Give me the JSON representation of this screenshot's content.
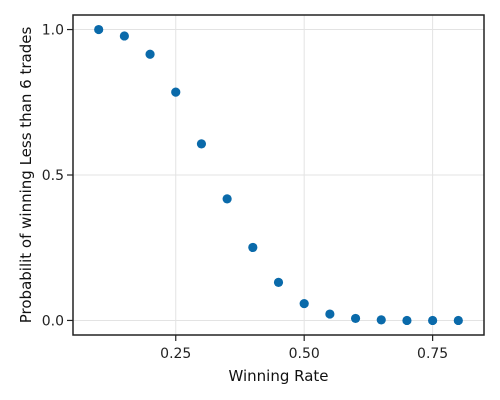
{
  "chart_data": {
    "type": "scatter",
    "title": "",
    "xlabel": "Winning Rate",
    "ylabel": "Probabilit of winning Less than 6 trades",
    "xlim": [
      0.05,
      0.85
    ],
    "ylim": [
      -0.05,
      1.05
    ],
    "xticks": [
      0.25,
      0.5,
      0.75
    ],
    "xtick_labels": [
      "0.25",
      "0.50",
      "0.75"
    ],
    "yticks": [
      0.0,
      0.5,
      1.0
    ],
    "ytick_labels": [
      "0.0",
      "0.5",
      "1.0"
    ],
    "grid": true,
    "marker_color": "#0a6aaa",
    "x": [
      0.1,
      0.15,
      0.2,
      0.25,
      0.3,
      0.35,
      0.4,
      0.45,
      0.5,
      0.55,
      0.6,
      0.65,
      0.7,
      0.75,
      0.8
    ],
    "y": [
      1.0,
      0.978,
      0.915,
      0.785,
      0.607,
      0.418,
      0.251,
      0.131,
      0.058,
      0.022,
      0.007,
      0.002,
      0.0,
      0.0,
      0.0
    ]
  }
}
